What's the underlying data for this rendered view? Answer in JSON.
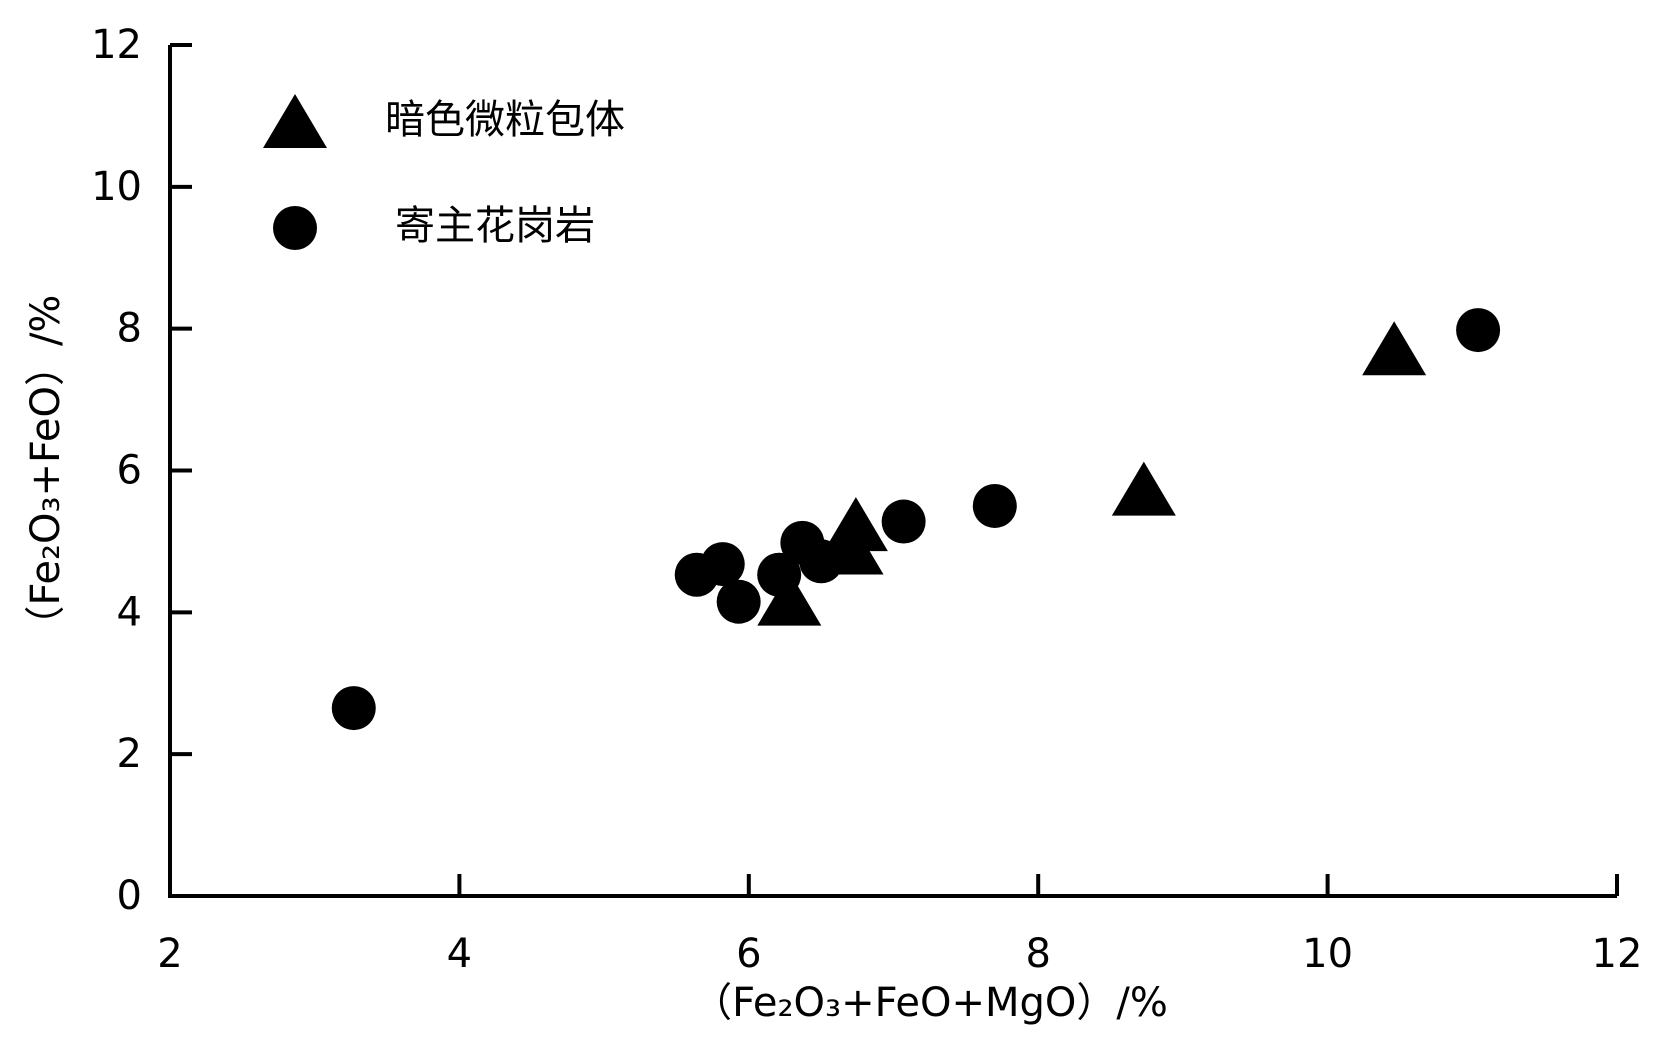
{
  "chart_data": {
    "type": "scatter",
    "x_label": "（Fe₂O₃+FeO+MgO）/%",
    "y_label": "（Fe₂O₃+FeO）/%",
    "xlim": [
      2,
      12
    ],
    "ylim": [
      0,
      12
    ],
    "xticks": [
      2,
      4,
      6,
      8,
      10,
      12
    ],
    "yticks": [
      0,
      2,
      4,
      6,
      8,
      10,
      12
    ],
    "series": [
      {
        "name": "暗色微粒包体",
        "marker": "triangle",
        "color": "#000000",
        "x": [
          10.46,
          8.73,
          6.74,
          6.71,
          6.28
        ],
        "values": [
          7.71,
          5.73,
          5.23,
          4.9,
          4.18
        ]
      },
      {
        "name": "寄主花岗岩",
        "marker": "circle",
        "color": "#000000",
        "x": [
          11.04,
          7.7,
          7.07,
          6.37,
          6.5,
          6.21,
          5.82,
          5.64,
          5.93,
          3.27
        ],
        "values": [
          7.98,
          5.5,
          5.28,
          4.98,
          4.72,
          4.53,
          4.68,
          4.53,
          4.15,
          2.65
        ]
      }
    ]
  }
}
